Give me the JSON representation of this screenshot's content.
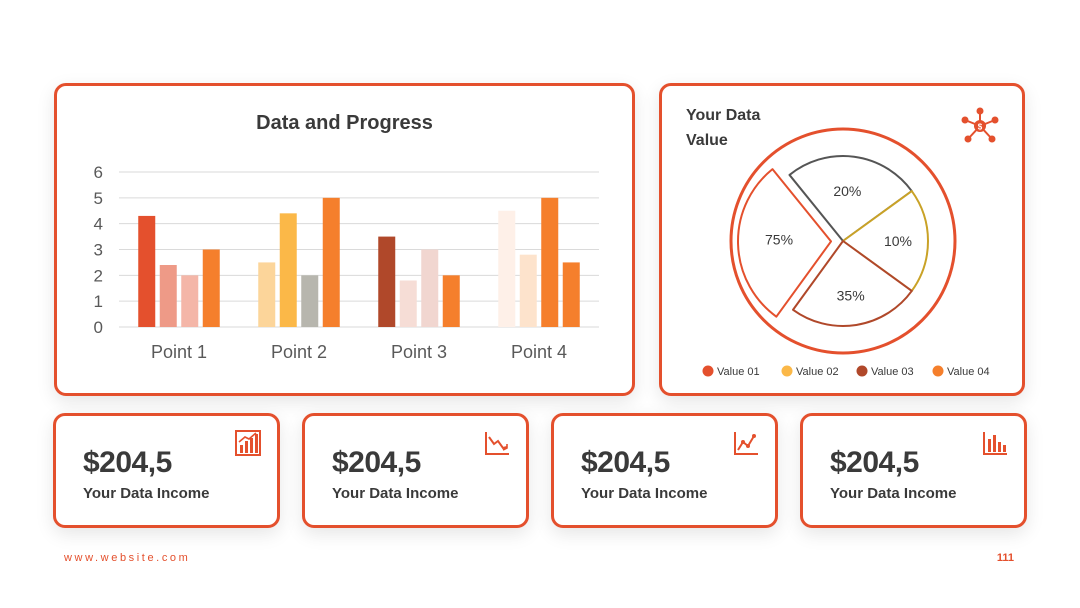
{
  "bar_chart": {
    "title": "Data and Progress"
  },
  "pie_chart": {
    "title_line1": "Your Data",
    "title_line2": "Value",
    "icon": "network-icon"
  },
  "chart_data": [
    {
      "type": "bar",
      "title": "Data and Progress",
      "categories": [
        "Point 1",
        "Point 2",
        "Point 3",
        "Point 4"
      ],
      "ylim": [
        0,
        6
      ],
      "yticks": [
        0,
        1,
        2,
        3,
        4,
        5,
        6
      ],
      "grid": true,
      "groups": [
        {
          "values": [
            4.3,
            2.4,
            2.0,
            3.0
          ],
          "colors": [
            "#E4502D",
            "#EE9A87",
            "#F4B6A8",
            "#F57F2C"
          ]
        },
        {
          "values": [
            2.5,
            4.4,
            2.0,
            5.0
          ],
          "colors": [
            "#FCD59A",
            "#FBB848",
            "#B7B6AE",
            "#F57F2C"
          ]
        },
        {
          "values": [
            3.5,
            1.8,
            3.0,
            2.0
          ],
          "colors": [
            "#B0482A",
            "#F6DDD6",
            "#F1D6D0",
            "#F57F2C"
          ]
        },
        {
          "values": [
            4.5,
            2.8,
            5.0,
            2.5
          ],
          "colors": [
            "#FEF0E8",
            "#FDE3CC",
            "#F57F2C",
            "#F57F2C"
          ]
        }
      ]
    },
    {
      "type": "pie",
      "slices": [
        {
          "label": "20%",
          "value": 20,
          "stroke": "#555555"
        },
        {
          "label": "10%",
          "value": 10,
          "stroke": "#C9A227"
        },
        {
          "label": "35%",
          "value": 35,
          "stroke": "#B0482A"
        },
        {
          "label": "75%",
          "value": 75,
          "stroke": "#E4502D"
        }
      ],
      "legend": [
        {
          "label": "Value 01",
          "color": "#E4502D"
        },
        {
          "label": "Value 02",
          "color": "#FBB848"
        },
        {
          "label": "Value 03",
          "color": "#B0482A"
        },
        {
          "label": "Value 04",
          "color": "#F57F2C"
        }
      ]
    }
  ],
  "stats": [
    {
      "value": "$204,5",
      "label": "Your Data Income",
      "icon": "bar-chart-up-icon"
    },
    {
      "value": "$204,5",
      "label": "Your Data Income",
      "icon": "trend-down-icon"
    },
    {
      "value": "$204,5",
      "label": "Your Data Income",
      "icon": "trend-up-icon"
    },
    {
      "value": "$204,5",
      "label": "Your Data Income",
      "icon": "bar-chart-icon"
    }
  ],
  "footer": {
    "website": "www.website.com",
    "page_number": "111"
  },
  "colors": {
    "accent": "#E4502D",
    "text": "#3A3A3A"
  }
}
